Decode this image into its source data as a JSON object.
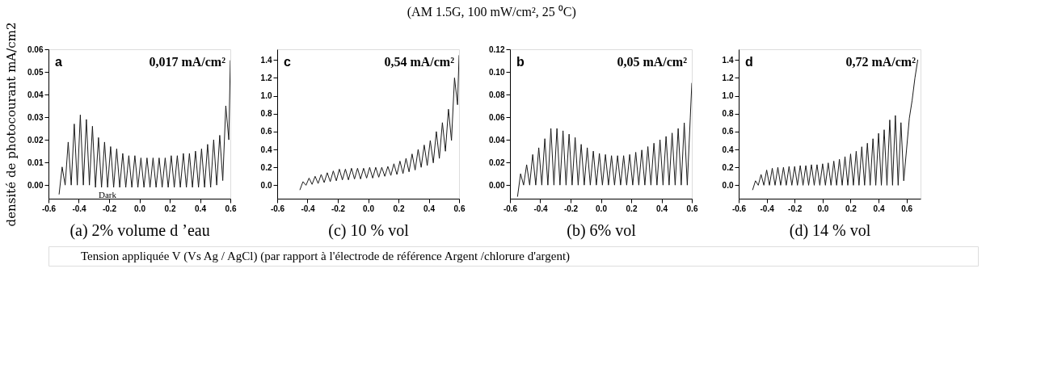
{
  "chart_data": [
    {
      "type": "line",
      "ylabel": "densité de photocourant mA/cm2",
      "xlabel": "(a) 2% volume d ’eau",
      "color": "#1a1a1a",
      "x": [
        -0.53,
        -0.51,
        -0.49,
        -0.47,
        -0.45,
        -0.43,
        -0.41,
        -0.39,
        -0.37,
        -0.35,
        -0.33,
        -0.31,
        -0.29,
        -0.27,
        -0.25,
        -0.23,
        -0.21,
        -0.19,
        -0.17,
        -0.15,
        -0.13,
        -0.11,
        -0.09,
        -0.07,
        -0.05,
        -0.03,
        -0.01,
        0.01,
        0.03,
        0.05,
        0.07,
        0.09,
        0.11,
        0.13,
        0.15,
        0.17,
        0.19,
        0.21,
        0.23,
        0.25,
        0.27,
        0.29,
        0.31,
        0.33,
        0.35,
        0.37,
        0.39,
        0.41,
        0.43,
        0.45,
        0.47,
        0.49,
        0.51,
        0.53,
        0.55,
        0.57,
        0.59,
        0.6
      ],
      "values": [
        -0.004,
        0.008,
        0.0,
        0.019,
        0.0,
        0.027,
        0.0,
        0.031,
        0.0,
        0.029,
        0.0,
        0.026,
        -0.001,
        0.021,
        -0.001,
        0.019,
        -0.001,
        0.017,
        -0.001,
        0.016,
        -0.001,
        0.014,
        -0.001,
        0.013,
        -0.001,
        0.013,
        -0.001,
        0.012,
        -0.001,
        0.012,
        -0.001,
        0.012,
        -0.001,
        0.012,
        -0.001,
        0.012,
        -0.001,
        0.013,
        -0.001,
        0.013,
        -0.001,
        0.014,
        -0.001,
        0.014,
        -0.001,
        0.015,
        -0.001,
        0.016,
        -0.001,
        0.018,
        -0.001,
        0.02,
        0.0,
        0.022,
        0.002,
        0.035,
        0.02,
        0.055
      ],
      "xlim": [
        -0.6,
        0.6
      ],
      "ylim": [
        -0.006,
        0.06
      ],
      "xticks": [
        {
          "value": -0.6,
          "label": "-0.6"
        },
        {
          "value": -0.4,
          "label": "-0.4"
        },
        {
          "value": -0.2,
          "label": "-0.2"
        },
        {
          "value": 0,
          "label": "0.0"
        },
        {
          "value": 0.2,
          "label": "0.2"
        },
        {
          "value": 0.4,
          "label": "0.4"
        },
        {
          "value": 0.6,
          "label": "0.6"
        }
      ],
      "yticks": [
        {
          "value": 0,
          "label": "0.00"
        },
        {
          "value": 0.01,
          "label": "0.01"
        },
        {
          "value": 0.02,
          "label": "0.02"
        },
        {
          "value": 0.03,
          "label": "0.03"
        },
        {
          "value": 0.04,
          "label": "0.04"
        },
        {
          "value": 0.05,
          "label": "0.05"
        },
        {
          "value": 0.06,
          "label": "0.06"
        }
      ],
      "grid": false,
      "annotations": [
        "a",
        "0,017 mA/cm²",
        "Dark",
        "Tension appliquée V (Vs Ag / AgCl)  (par rapport à l'électrode de référence Argent /chlorure d'argent)",
        "(AM 1.5G, 100 mW/cm², 25 ⁰C)"
      ]
    },
    {
      "type": "line",
      "xlabel": "(c) 10 % vol",
      "color": "#1a1a1a",
      "x": [
        -0.45,
        -0.43,
        -0.41,
        -0.39,
        -0.37,
        -0.35,
        -0.33,
        -0.31,
        -0.29,
        -0.27,
        -0.25,
        -0.23,
        -0.21,
        -0.19,
        -0.17,
        -0.15,
        -0.13,
        -0.11,
        -0.09,
        -0.07,
        -0.05,
        -0.03,
        -0.01,
        0.01,
        0.03,
        0.05,
        0.07,
        0.09,
        0.11,
        0.13,
        0.15,
        0.17,
        0.19,
        0.21,
        0.23,
        0.25,
        0.27,
        0.29,
        0.31,
        0.33,
        0.35,
        0.37,
        0.39,
        0.41,
        0.43,
        0.45,
        0.47,
        0.49,
        0.51,
        0.53,
        0.55,
        0.57,
        0.59,
        0.6
      ],
      "values": [
        -0.05,
        0.04,
        0.0,
        0.08,
        0.01,
        0.1,
        0.02,
        0.12,
        0.03,
        0.14,
        0.04,
        0.16,
        0.05,
        0.18,
        0.06,
        0.18,
        0.06,
        0.19,
        0.07,
        0.19,
        0.07,
        0.19,
        0.08,
        0.2,
        0.08,
        0.2,
        0.09,
        0.2,
        0.1,
        0.21,
        0.11,
        0.24,
        0.12,
        0.27,
        0.13,
        0.3,
        0.15,
        0.35,
        0.17,
        0.4,
        0.2,
        0.45,
        0.22,
        0.5,
        0.25,
        0.6,
        0.3,
        0.7,
        0.38,
        0.85,
        0.5,
        1.2,
        0.9,
        1.45
      ],
      "xlim": [
        -0.6,
        0.6
      ],
      "ylim": [
        -0.15,
        1.52
      ],
      "xticks": [
        {
          "value": -0.6,
          "label": "-0.6"
        },
        {
          "value": -0.4,
          "label": "-0.4"
        },
        {
          "value": -0.2,
          "label": "-0.2"
        },
        {
          "value": 0,
          "label": "0.0"
        },
        {
          "value": 0.2,
          "label": "0.2"
        },
        {
          "value": 0.4,
          "label": "0.4"
        },
        {
          "value": 0.6,
          "label": "0.6"
        }
      ],
      "yticks": [
        {
          "value": 0,
          "label": "0.0"
        },
        0.2,
        0.4,
        0.6,
        0.8,
        {
          "value": 1,
          "label": "1.0"
        },
        1.2,
        1.4
      ],
      "grid": false,
      "annotations": [
        "c",
        "0,54 mA/cm²"
      ]
    },
    {
      "type": "line",
      "xlabel": "(b) 6% vol",
      "color": "#1a1a1a",
      "x": [
        -0.55,
        -0.53,
        -0.51,
        -0.49,
        -0.47,
        -0.45,
        -0.43,
        -0.41,
        -0.39,
        -0.37,
        -0.35,
        -0.33,
        -0.31,
        -0.29,
        -0.27,
        -0.25,
        -0.23,
        -0.21,
        -0.19,
        -0.17,
        -0.15,
        -0.13,
        -0.11,
        -0.09,
        -0.07,
        -0.05,
        -0.03,
        -0.01,
        0.01,
        0.03,
        0.05,
        0.07,
        0.09,
        0.11,
        0.13,
        0.15,
        0.17,
        0.19,
        0.21,
        0.23,
        0.25,
        0.27,
        0.29,
        0.31,
        0.33,
        0.35,
        0.37,
        0.39,
        0.41,
        0.43,
        0.45,
        0.47,
        0.49,
        0.51,
        0.53,
        0.55,
        0.57,
        0.59,
        0.6
      ],
      "values": [
        -0.01,
        0.01,
        0.0,
        0.018,
        0.0,
        0.027,
        0.0,
        0.033,
        0.0,
        0.041,
        0.0,
        0.05,
        0.0,
        0.05,
        0.0,
        0.048,
        0.0,
        0.045,
        0.0,
        0.042,
        0.0,
        0.036,
        0.0,
        0.033,
        0.0,
        0.03,
        0.0,
        0.028,
        0.0,
        0.027,
        0.0,
        0.026,
        0.0,
        0.026,
        0.0,
        0.026,
        0.0,
        0.027,
        0.0,
        0.029,
        0.0,
        0.031,
        0.0,
        0.034,
        0.0,
        0.037,
        0.0,
        0.04,
        0.0,
        0.043,
        0.0,
        0.046,
        0.0,
        0.05,
        0.0,
        0.055,
        0.0,
        0.06,
        0.09
      ],
      "xlim": [
        -0.6,
        0.6
      ],
      "ylim": [
        -0.012,
        0.12
      ],
      "xticks": [
        {
          "value": -0.6,
          "label": "-0.6"
        },
        {
          "value": -0.4,
          "label": "-0.4"
        },
        {
          "value": -0.2,
          "label": "-0.2"
        },
        {
          "value": 0,
          "label": "0.0"
        },
        {
          "value": 0.2,
          "label": "0.2"
        },
        {
          "value": 0.4,
          "label": "0.4"
        },
        {
          "value": 0.6,
          "label": "0.6"
        }
      ],
      "yticks": [
        {
          "value": 0,
          "label": "0.00"
        },
        0.02,
        0.04,
        0.06,
        0.08,
        {
          "value": 0.1,
          "label": "0.10"
        },
        0.12
      ],
      "grid": false,
      "annotations": [
        "b",
        "0,05 mA/cm²"
      ]
    },
    {
      "type": "line",
      "xlabel": "(d) 14 % vol",
      "color": "#1a1a1a",
      "x": [
        -0.5,
        -0.48,
        -0.46,
        -0.44,
        -0.42,
        -0.4,
        -0.38,
        -0.36,
        -0.34,
        -0.32,
        -0.3,
        -0.28,
        -0.26,
        -0.24,
        -0.22,
        -0.2,
        -0.18,
        -0.16,
        -0.14,
        -0.12,
        -0.1,
        -0.08,
        -0.06,
        -0.04,
        -0.02,
        0.0,
        0.02,
        0.04,
        0.06,
        0.08,
        0.1,
        0.12,
        0.14,
        0.16,
        0.18,
        0.2,
        0.22,
        0.24,
        0.26,
        0.28,
        0.3,
        0.32,
        0.34,
        0.36,
        0.38,
        0.4,
        0.42,
        0.44,
        0.46,
        0.48,
        0.5,
        0.52,
        0.54,
        0.56,
        0.58,
        0.6,
        0.62,
        0.64,
        0.66,
        0.68
      ],
      "values": [
        -0.05,
        0.05,
        0.0,
        0.12,
        0.0,
        0.17,
        0.0,
        0.19,
        0.0,
        0.2,
        0.0,
        0.2,
        0.0,
        0.21,
        0.0,
        0.21,
        0.0,
        0.22,
        0.0,
        0.22,
        0.0,
        0.23,
        0.0,
        0.23,
        0.0,
        0.24,
        0.0,
        0.25,
        0.0,
        0.27,
        0.0,
        0.29,
        0.0,
        0.32,
        0.0,
        0.35,
        0.0,
        0.38,
        0.0,
        0.43,
        0.0,
        0.47,
        0.0,
        0.52,
        0.0,
        0.58,
        0.0,
        0.62,
        0.0,
        0.73,
        0.0,
        0.78,
        0.0,
        0.7,
        0.05,
        0.4,
        0.75,
        0.95,
        1.2,
        1.4
      ],
      "xlim": [
        -0.6,
        0.7
      ],
      "ylim": [
        -0.15,
        1.52
      ],
      "xticks": [
        {
          "value": -0.6,
          "label": "-0.6"
        },
        {
          "value": -0.4,
          "label": "-0.4"
        },
        {
          "value": -0.2,
          "label": "-0.2"
        },
        {
          "value": 0,
          "label": "0.0"
        },
        {
          "value": 0.2,
          "label": "0.2"
        },
        {
          "value": 0.4,
          "label": "0.4"
        },
        {
          "value": 0.6,
          "label": "0.6"
        }
      ],
      "yticks": [
        {
          "value": 0,
          "label": "0.0"
        },
        0.2,
        0.4,
        0.6,
        0.8,
        {
          "value": 1,
          "label": "1.0"
        },
        1.2,
        1.4
      ],
      "grid": false,
      "annotations": [
        "d",
        "0,72 mA/cm²"
      ]
    }
  ]
}
